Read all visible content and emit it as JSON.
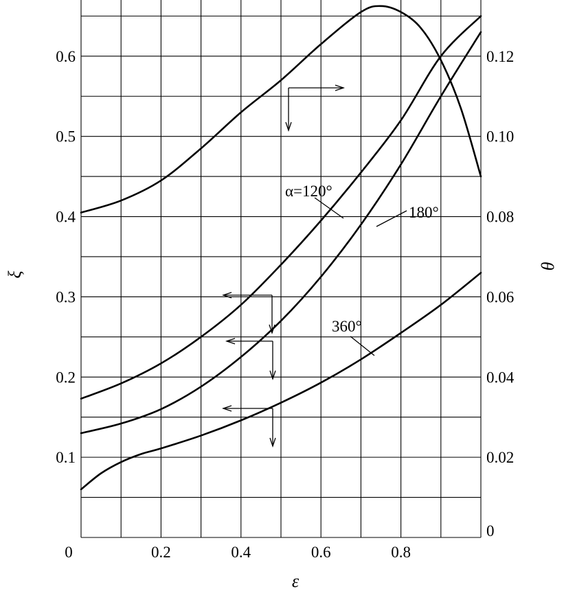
{
  "chart_data": {
    "type": "line",
    "xlabel": "ε",
    "ylabel_left": "ξ",
    "ylabel_right": "θ",
    "xlim": [
      0,
      1.0
    ],
    "ylim_left": [
      0,
      0.67
    ],
    "ylim_right": [
      0,
      0.134
    ],
    "grid": true,
    "x_ticks": [
      "0",
      "0.2",
      "0.4",
      "0.6",
      "0.8"
    ],
    "y_ticks_left": [
      "0.1",
      "0.2",
      "0.3",
      "0.4",
      "0.5",
      "0.6"
    ],
    "y_ticks_right": [
      "0",
      "0.02",
      "0.04",
      "0.06",
      "0.08",
      "0.10",
      "0.12"
    ],
    "series": [
      {
        "name": "α=120°",
        "axis": "left",
        "label": "α=120°",
        "x": [
          0,
          0.1,
          0.2,
          0.3,
          0.4,
          0.5,
          0.6,
          0.7,
          0.8,
          0.9,
          1.0
        ],
        "y": [
          0.173,
          0.192,
          0.217,
          0.25,
          0.29,
          0.34,
          0.395,
          0.455,
          0.52,
          0.6,
          0.65
        ]
      },
      {
        "name": "180°",
        "axis": "left",
        "label": "180°",
        "x": [
          0,
          0.1,
          0.2,
          0.3,
          0.4,
          0.5,
          0.6,
          0.7,
          0.8,
          0.9,
          1.0
        ],
        "y": [
          0.13,
          0.142,
          0.16,
          0.188,
          0.225,
          0.27,
          0.325,
          0.39,
          0.465,
          0.55,
          0.63
        ]
      },
      {
        "name": "360°",
        "axis": "left",
        "label": "360°",
        "x": [
          0,
          0.05,
          0.1,
          0.15,
          0.2,
          0.3,
          0.4,
          0.5,
          0.6,
          0.7,
          0.8,
          0.9,
          1.0
        ],
        "y": [
          0.06,
          0.08,
          0.094,
          0.104,
          0.111,
          0.127,
          0.146,
          0.168,
          0.193,
          0.222,
          0.255,
          0.29,
          0.33
        ]
      },
      {
        "name": "θ",
        "axis": "right",
        "x": [
          0,
          0.1,
          0.2,
          0.3,
          0.4,
          0.5,
          0.6,
          0.7,
          0.75,
          0.8,
          0.85,
          0.9,
          0.95,
          1.0
        ],
        "y": [
          0.081,
          0.084,
          0.089,
          0.097,
          0.106,
          0.114,
          0.123,
          0.131,
          0.1325,
          0.131,
          0.127,
          0.119,
          0.107,
          0.09
        ]
      }
    ]
  }
}
